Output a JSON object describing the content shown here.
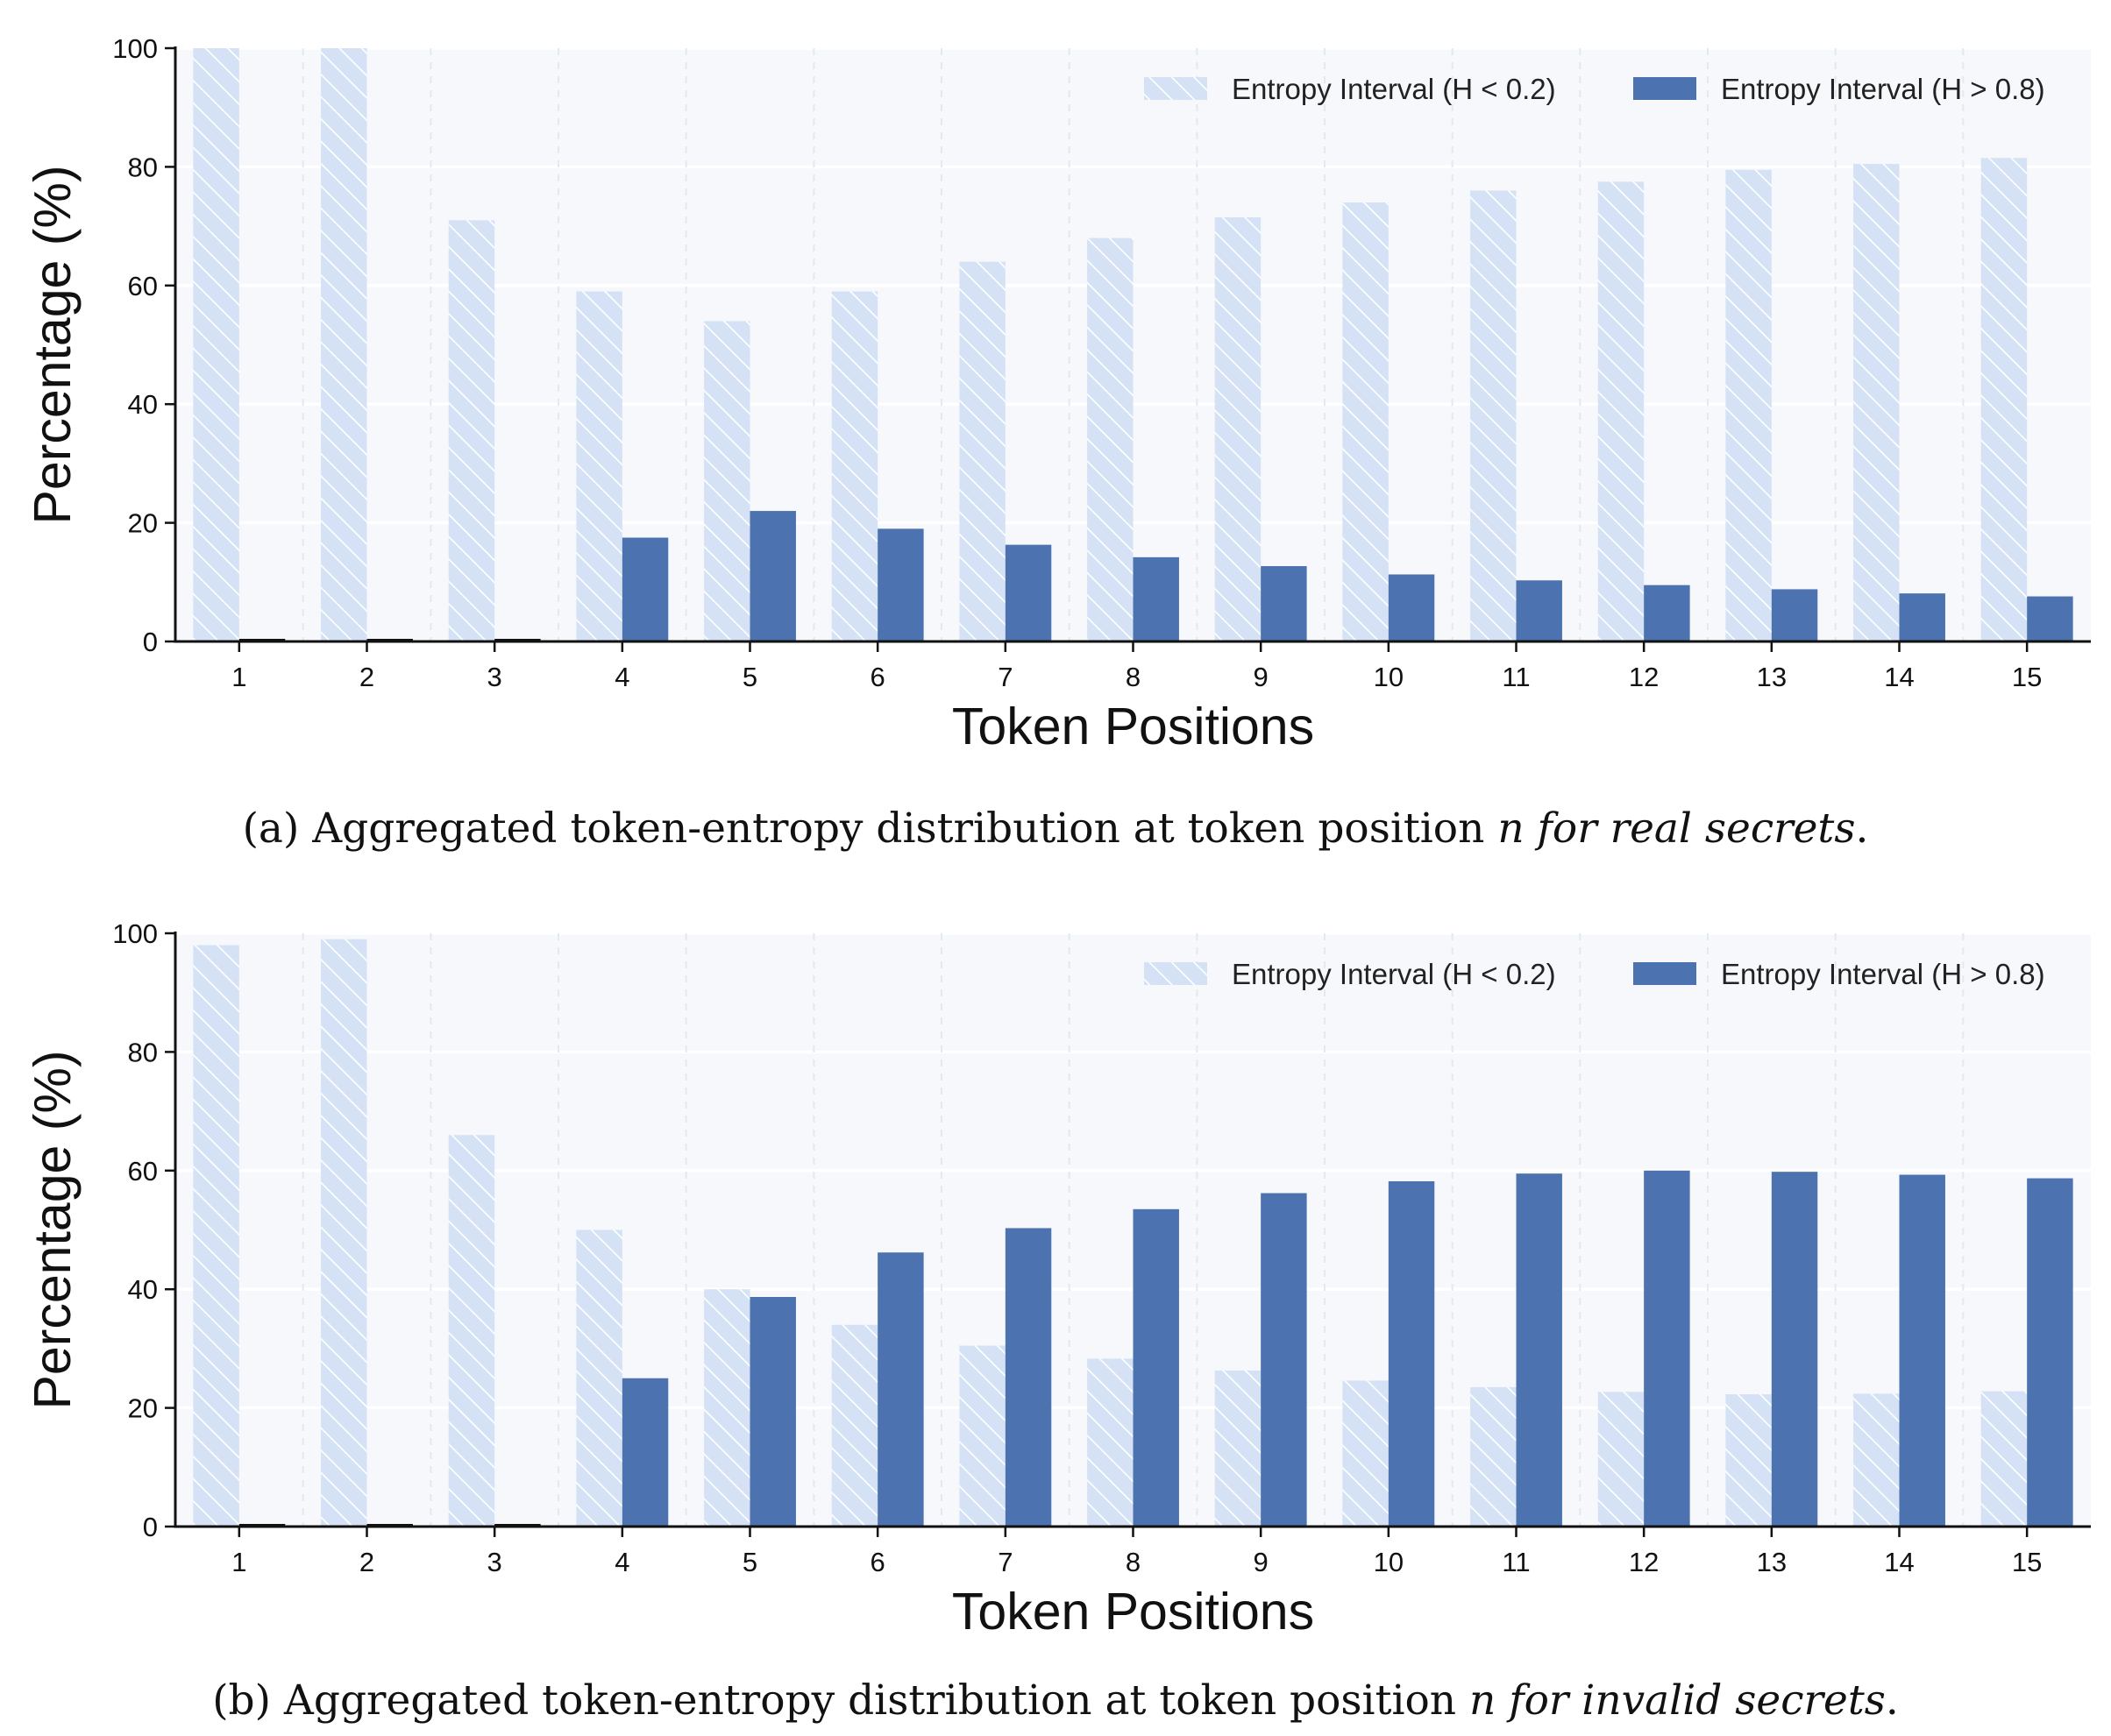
{
  "colors": {
    "low": "#d5e2f5",
    "low_hatch": "#ffffff",
    "high": "#4c72b0",
    "plot_bg": "#f6f8fc",
    "grid": "#ffffff"
  },
  "chart_data": [
    {
      "type": "bar",
      "xlabel": "Token Positions",
      "ylabel": "Percentage (%)",
      "ylim": [
        0,
        100
      ],
      "yticks": [
        "0",
        "20",
        "40",
        "60",
        "80",
        "100"
      ],
      "categories": [
        "1",
        "2",
        "3",
        "4",
        "5",
        "6",
        "7",
        "8",
        "9",
        "10",
        "11",
        "12",
        "13",
        "14",
        "15"
      ],
      "legend_position": "top-right",
      "grid": true,
      "series": [
        {
          "name": "Entropy Interval (H < 0.2)",
          "style": "hatched",
          "values": [
            100,
            100,
            71,
            59,
            54,
            59,
            64,
            68,
            71.5,
            74,
            76,
            77.5,
            79.5,
            80.5,
            81.5
          ]
        },
        {
          "name": "Entropy Interval (H > 0.8)",
          "style": "solid",
          "values": [
            0,
            0,
            0,
            17.5,
            22,
            19,
            16.3,
            14.2,
            12.7,
            11.3,
            10.3,
            9.5,
            8.8,
            8.1,
            7.6
          ]
        }
      ],
      "caption": {
        "prefix": "(a) Aggregated token-entropy distribution at token position ",
        "italic": "n for real secrets",
        "suffix": "."
      }
    },
    {
      "type": "bar",
      "xlabel": "Token Positions",
      "ylabel": "Percentage (%)",
      "ylim": [
        0,
        100
      ],
      "yticks": [
        "0",
        "20",
        "40",
        "60",
        "80",
        "100"
      ],
      "categories": [
        "1",
        "2",
        "3",
        "4",
        "5",
        "6",
        "7",
        "8",
        "9",
        "10",
        "11",
        "12",
        "13",
        "14",
        "15"
      ],
      "legend_position": "top-right",
      "grid": true,
      "series": [
        {
          "name": "Entropy Interval (H < 0.2)",
          "style": "hatched",
          "values": [
            98,
            99,
            66,
            50,
            40,
            34,
            30.5,
            28.3,
            26.3,
            24.6,
            23.5,
            22.7,
            22.3,
            22.4,
            22.8
          ]
        },
        {
          "name": "Entropy Interval (H > 0.8)",
          "style": "solid",
          "values": [
            0,
            0,
            0.3,
            25,
            38.7,
            46.2,
            50.3,
            53.5,
            56.2,
            58.2,
            59.5,
            60,
            59.8,
            59.3,
            58.7
          ]
        }
      ],
      "caption": {
        "prefix": "(b) Aggregated token-entropy distribution at token position ",
        "italic": "n for invalid secrets",
        "suffix": "."
      }
    }
  ]
}
